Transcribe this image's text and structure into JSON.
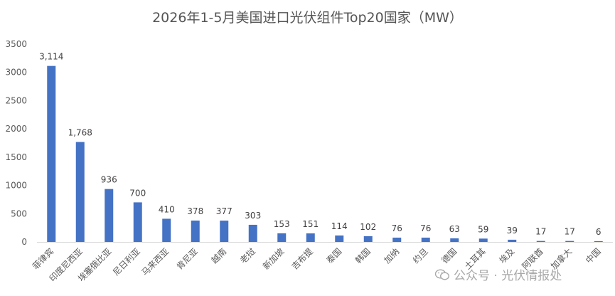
{
  "chart_data": {
    "type": "bar",
    "title": "2026年1-5月美国进口光伏组件Top20国家（MW）",
    "categories": [
      "菲律宾",
      "印度尼西亚",
      "埃塞俄比亚",
      "尼日利亚",
      "马来西亚",
      "肯尼亚",
      "越南",
      "老挝",
      "新加坡",
      "吉布提",
      "泰国",
      "韩国",
      "加纳",
      "约旦",
      "德国",
      "土耳其",
      "埃及",
      "阿联酋",
      "加拿大",
      "中国"
    ],
    "values": [
      3114,
      1768,
      936,
      700,
      410,
      378,
      377,
      303,
      153,
      151,
      114,
      102,
      76,
      76,
      63,
      59,
      39,
      17,
      17,
      6
    ],
    "data_labels": [
      "3,114",
      "1,768",
      "936",
      "700",
      "410",
      "378",
      "377",
      "303",
      "153",
      "151",
      "114",
      "102",
      "76",
      "76",
      "63",
      "59",
      "39",
      "17",
      "17",
      "6"
    ],
    "ylim": [
      0,
      3500
    ],
    "yticks": [
      0,
      500,
      1000,
      1500,
      2000,
      2500,
      3000,
      3500
    ],
    "bar_color": "#4472C4",
    "grid": false,
    "xlabel": "",
    "ylabel": ""
  },
  "watermark": {
    "text": "公众号 · 光伏情报处",
    "icon": "wechat-icon"
  }
}
